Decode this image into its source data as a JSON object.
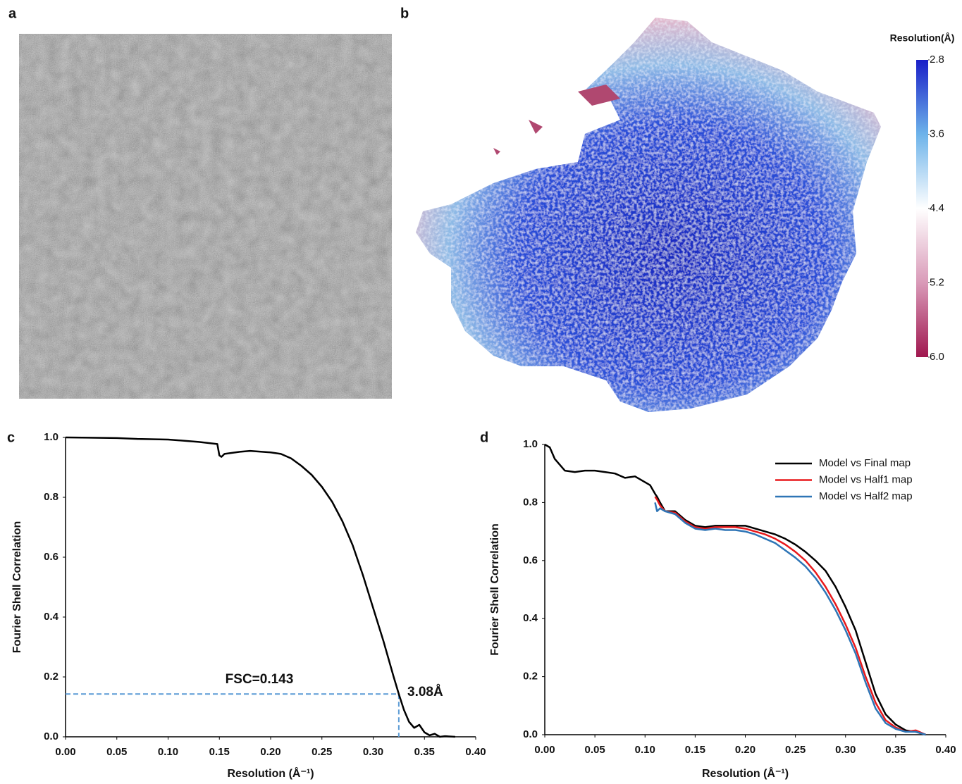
{
  "panel_labels": [
    "a",
    "b",
    "c",
    "d"
  ],
  "chart_data": [
    {
      "type": "colorbar",
      "title": "Resolution(Å)",
      "ylim": [
        6,
        2.8
      ],
      "yticks": [
        2.8,
        3.6,
        4.4,
        5.2,
        {
          "value": 6,
          "label": "6.0"
        }
      ],
      "colors": [
        "#1a1fc8",
        "#6db3ea",
        "#ffffff",
        "#d99ab8",
        "#a0174f"
      ]
    },
    {
      "type": "line",
      "x_label": "Resolution (Å⁻¹)",
      "y_label": "Fourier Shell Correlation",
      "color": "#000000",
      "x": [
        0,
        0.05,
        0.07,
        0.1,
        0.13,
        0.148,
        0.15,
        0.152,
        0.155,
        0.17,
        0.18,
        0.2,
        0.21,
        0.22,
        0.23,
        0.24,
        0.25,
        0.26,
        0.27,
        0.28,
        0.29,
        0.3,
        0.31,
        0.32,
        0.325,
        0.33,
        0.335,
        0.34,
        0.345,
        0.35,
        0.355,
        0.36,
        0.365,
        0.37,
        0.38
      ],
      "values": [
        1.0,
        0.998,
        0.995,
        0.993,
        0.985,
        0.978,
        0.94,
        0.935,
        0.945,
        0.952,
        0.955,
        0.95,
        0.945,
        0.93,
        0.905,
        0.875,
        0.835,
        0.785,
        0.72,
        0.64,
        0.54,
        0.43,
        0.32,
        0.2,
        0.143,
        0.09,
        0.05,
        0.03,
        0.04,
        0.015,
        0.005,
        0.01,
        0,
        0.002,
        0
      ],
      "cutoff": {
        "x": 0.325,
        "y": 0.143,
        "color": "#5b9bd5"
      },
      "annotations": [
        "FSC=0.143",
        "3.08Å"
      ],
      "xlim": [
        0,
        0.4
      ],
      "xticks": [
        {
          "value": 0,
          "label": "0.00"
        },
        0.05,
        {
          "value": 0.1,
          "label": "0.10"
        },
        0.15,
        {
          "value": 0.2,
          "label": "0.20"
        },
        0.25,
        {
          "value": 0.3,
          "label": "0.30"
        },
        0.35,
        {
          "value": 0.4,
          "label": "0.40"
        }
      ],
      "ylim": [
        0,
        1
      ],
      "yticks": [
        {
          "value": 0,
          "label": "0.0"
        },
        0.2,
        0.4,
        0.6,
        0.8,
        {
          "value": 1,
          "label": "1.0"
        }
      ]
    },
    {
      "type": "line",
      "x_label": "Resolution (Å⁻¹)",
      "y_label": "Fourier Shell Correlation",
      "legend": "top-right",
      "x": [
        0,
        0.005,
        0.01,
        0.02,
        0.03,
        0.04,
        0.05,
        0.06,
        0.07,
        0.08,
        0.09,
        0.1,
        0.105,
        0.11,
        0.112,
        0.115,
        0.12,
        0.13,
        0.14,
        0.15,
        0.16,
        0.17,
        0.18,
        0.19,
        0.2,
        0.21,
        0.22,
        0.23,
        0.24,
        0.25,
        0.26,
        0.27,
        0.28,
        0.29,
        0.3,
        0.31,
        0.32,
        0.33,
        0.34,
        0.35,
        0.36,
        0.37,
        0.38
      ],
      "series": [
        {
          "name": "Model vs Final map",
          "color": "#000000",
          "values": [
            1.0,
            0.99,
            0.95,
            0.91,
            0.905,
            0.91,
            0.91,
            0.905,
            0.9,
            0.885,
            0.89,
            0.87,
            0.86,
            0.83,
            0.82,
            0.8,
            0.77,
            0.77,
            0.74,
            0.72,
            0.715,
            0.72,
            0.72,
            0.72,
            0.72,
            0.71,
            0.7,
            0.69,
            0.675,
            0.655,
            0.63,
            0.6,
            0.565,
            0.51,
            0.44,
            0.36,
            0.25,
            0.14,
            0.07,
            0.035,
            0.015,
            0.01,
            0
          ]
        },
        {
          "name": "Model vs Half1 map",
          "color": "#e8191c",
          "values": [
            null,
            null,
            null,
            null,
            null,
            null,
            null,
            null,
            null,
            null,
            null,
            null,
            null,
            0.82,
            0.81,
            0.79,
            0.77,
            0.765,
            0.735,
            0.715,
            0.71,
            0.715,
            0.715,
            0.715,
            0.71,
            0.7,
            0.69,
            0.675,
            0.655,
            0.63,
            0.6,
            0.56,
            0.51,
            0.45,
            0.38,
            0.3,
            0.2,
            0.11,
            0.05,
            0.025,
            0.01,
            0.015,
            0
          ]
        },
        {
          "name": "Model vs Half2 map",
          "color": "#2e75b6",
          "values": [
            null,
            null,
            null,
            null,
            null,
            null,
            null,
            null,
            null,
            null,
            null,
            null,
            null,
            0.8,
            0.77,
            0.78,
            0.77,
            0.76,
            0.73,
            0.71,
            0.705,
            0.71,
            0.705,
            0.705,
            0.7,
            0.69,
            0.675,
            0.66,
            0.635,
            0.61,
            0.58,
            0.54,
            0.49,
            0.43,
            0.36,
            0.28,
            0.18,
            0.09,
            0.04,
            0.02,
            0.01,
            0.01,
            0
          ]
        }
      ],
      "xlim": [
        0,
        0.4
      ],
      "xticks": [
        {
          "value": 0,
          "label": "0.00"
        },
        0.05,
        {
          "value": 0.1,
          "label": "0.10"
        },
        0.15,
        {
          "value": 0.2,
          "label": "0.20"
        },
        0.25,
        {
          "value": 0.3,
          "label": "0.30"
        },
        0.35,
        {
          "value": 0.4,
          "label": "0.40"
        }
      ],
      "ylim": [
        0,
        1
      ],
      "yticks": [
        {
          "value": 0,
          "label": "0.0"
        },
        0.2,
        0.4,
        0.6,
        0.8,
        {
          "value": 1,
          "label": "1.0"
        }
      ]
    }
  ]
}
